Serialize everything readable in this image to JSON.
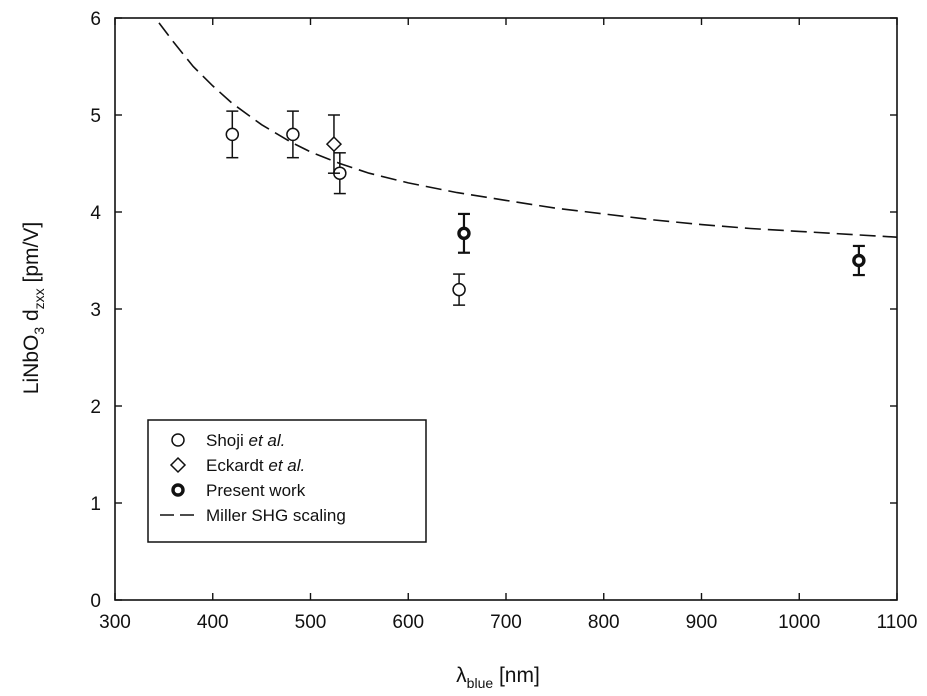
{
  "chart_data": {
    "type": "scatter",
    "title": "",
    "xlabel": {
      "base": "λ",
      "sub": "blue",
      "unit": " [nm]"
    },
    "ylabel": {
      "part1": "LiNbO",
      "sub1": "3",
      "part2": " d",
      "sub2": "zxx",
      "unit": " [pm/V]"
    },
    "xlim": [
      300,
      1100
    ],
    "ylim": [
      0,
      6
    ],
    "x_ticks": [
      300,
      400,
      500,
      600,
      700,
      800,
      900,
      1000,
      1100
    ],
    "y_ticks": [
      0,
      1,
      2,
      3,
      4,
      5,
      6
    ],
    "grid": false,
    "legend_position": "lower-left",
    "series": [
      {
        "name": "Shoji et al.",
        "name_parts": [
          "Shoji ",
          "et al."
        ],
        "marker": "circle-open",
        "points": [
          {
            "x": 420,
            "y": 4.8,
            "err": 0.24
          },
          {
            "x": 482,
            "y": 4.8,
            "err": 0.24
          },
          {
            "x": 530,
            "y": 4.4,
            "err": 0.21
          },
          {
            "x": 652,
            "y": 3.2,
            "err": 0.16
          }
        ]
      },
      {
        "name": "Eckardt et al.",
        "name_parts": [
          "Eckardt ",
          "et al."
        ],
        "marker": "diamond-open",
        "points": [
          {
            "x": 524,
            "y": 4.7,
            "err": 0.3
          }
        ]
      },
      {
        "name": "Present work",
        "name_parts": [
          "Present work",
          ""
        ],
        "marker": "circle-bold",
        "points": [
          {
            "x": 657,
            "y": 3.78,
            "err": 0.2
          },
          {
            "x": 1061,
            "y": 3.5,
            "err": 0.15
          }
        ]
      },
      {
        "name": "Miller SHG scaling",
        "name_parts": [
          "Miller SHG scaling",
          ""
        ],
        "marker": "dashed-line",
        "line": {
          "x": [
            345,
            360,
            380,
            400,
            420,
            450,
            480,
            500,
            530,
            560,
            600,
            650,
            700,
            750,
            800,
            850,
            900,
            950,
            1000,
            1050,
            1100
          ],
          "y": [
            5.95,
            5.75,
            5.5,
            5.3,
            5.12,
            4.9,
            4.72,
            4.62,
            4.5,
            4.4,
            4.3,
            4.2,
            4.12,
            4.04,
            3.98,
            3.92,
            3.87,
            3.83,
            3.8,
            3.77,
            3.74
          ]
        }
      }
    ]
  }
}
